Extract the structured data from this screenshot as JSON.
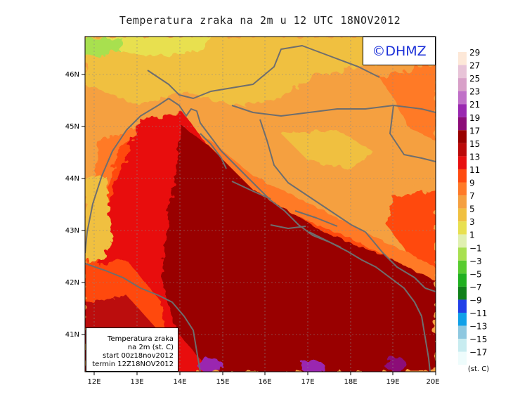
{
  "title": "Temperatura zraka na 2m u 12 UTC 18NOV2012",
  "copyright": "©DHMZ",
  "info_box": {
    "line1": "Temperatura zraka",
    "line2": "na 2m (st. C)",
    "line3": "start 00z18nov2012",
    "line4": "termin 12Z18NOV2012"
  },
  "axes": {
    "x_ticks": [
      "12E",
      "13E",
      "14E",
      "15E",
      "16E",
      "17E",
      "18E",
      "19E",
      "20E"
    ],
    "y_ticks": [
      "46N",
      "45N",
      "44N",
      "43N",
      "42N",
      "41N"
    ]
  },
  "legend": {
    "unit": "(st. C)",
    "labels": [
      "29",
      "27",
      "25",
      "23",
      "21",
      "19",
      "17",
      "15",
      "13",
      "11",
      "9",
      "7",
      "5",
      "3",
      "1",
      "−1",
      "−3",
      "−5",
      "−7",
      "−9",
      "−11",
      "−13",
      "−15",
      "−17"
    ],
    "colors": [
      "#fde8d8",
      "#e8c4d8",
      "#d8a0c8",
      "#c070c8",
      "#9a28b0",
      "#8c0c78",
      "#990000",
      "#bb0a0a",
      "#e81010",
      "#ff4a10",
      "#ff7a28",
      "#f5a040",
      "#f0c040",
      "#e8e050",
      "#e0f0b0",
      "#a8e050",
      "#58cc30",
      "#20b020",
      "#10801a",
      "#2040e8",
      "#10a0e8",
      "#8ec8e0",
      "#c8ecf0",
      "#eefcfc"
    ]
  },
  "colors": {
    "border": "#6e6e6e",
    "frame": "#000000"
  }
}
